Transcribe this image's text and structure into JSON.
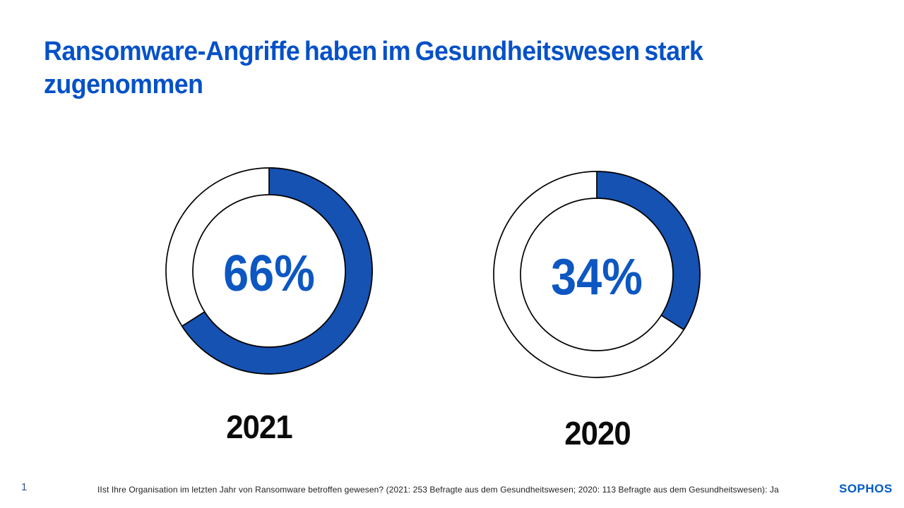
{
  "slide": {
    "title_lines": [
      "Ransomware-Angriffe haben im Gesundheitswesen stark",
      "zugenommen"
    ]
  },
  "chart_data": [
    {
      "type": "donut",
      "year_label": "2021",
      "value_pct": 66,
      "value_display": "66%",
      "segment_color": "#1552b2",
      "remainder_color": "#ffffff",
      "outline_color": "#000000",
      "start_angle": "top",
      "direction": "clockwise"
    },
    {
      "type": "donut",
      "year_label": "2020",
      "value_pct": 34,
      "value_display": "34%",
      "segment_color": "#1552b2",
      "remainder_color": "#ffffff",
      "outline_color": "#000000",
      "start_angle": "top",
      "direction": "clockwise"
    }
  ],
  "footer": {
    "page_number": "1",
    "source_text": "IIst Ihre Organisation im letzten Jahr von Ransomware betroffen  gewesen? (2021: 253 Befragte  aus dem Gesundheitswesen; 2020: 113 Befragte aus dem Gesundheitswesen): Ja",
    "brand_logo": "SOPHOS"
  },
  "colors": {
    "title_blue": "#0551c8",
    "percent_blue": "#0d57c2",
    "chart_blue": "#1552b2",
    "logo_blue": "#005bc8",
    "page_number_blue": "#2f5496",
    "year_label_black": "#0b0b0b",
    "footer_text": "#1f1f1f",
    "background": "#ffffff"
  }
}
